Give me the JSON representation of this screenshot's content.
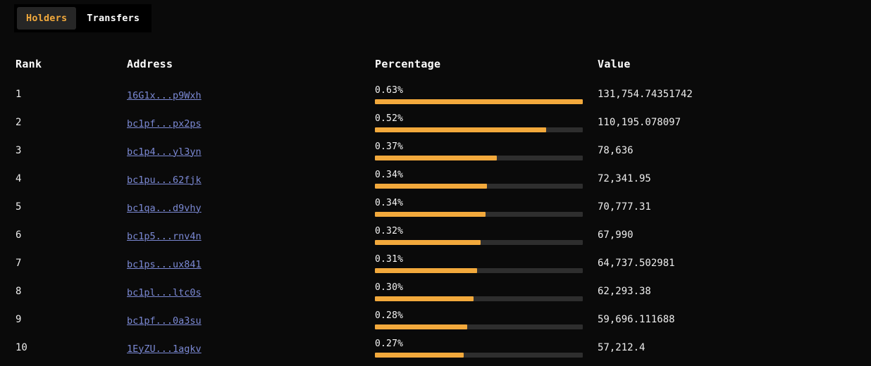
{
  "tabs": [
    {
      "label": "Holders",
      "active": true
    },
    {
      "label": "Transfers",
      "active": false
    }
  ],
  "table": {
    "headers": {
      "rank": "Rank",
      "address": "Address",
      "percentage": "Percentage",
      "value": "Value"
    },
    "rows": [
      {
        "rank": "1",
        "address": "16G1x...p9Wxh",
        "percent": "0.63%",
        "percent_value": 0.63,
        "value": "131,754.74351742"
      },
      {
        "rank": "2",
        "address": "bc1pf...px2ps",
        "percent": "0.52%",
        "percent_value": 0.52,
        "value": "110,195.078097"
      },
      {
        "rank": "3",
        "address": "bc1p4...yl3yn",
        "percent": "0.37%",
        "percent_value": 0.37,
        "value": "78,636"
      },
      {
        "rank": "4",
        "address": "bc1pu...62fjk",
        "percent": "0.34%",
        "percent_value": 0.34,
        "value": "72,341.95"
      },
      {
        "rank": "5",
        "address": "bc1qa...d9vhy",
        "percent": "0.34%",
        "percent_value": 0.335,
        "value": "70,777.31"
      },
      {
        "rank": "6",
        "address": "bc1p5...rnv4n",
        "percent": "0.32%",
        "percent_value": 0.32,
        "value": "67,990"
      },
      {
        "rank": "7",
        "address": "bc1ps...ux841",
        "percent": "0.31%",
        "percent_value": 0.31,
        "value": "64,737.502981"
      },
      {
        "rank": "8",
        "address": "bc1pl...ltc0s",
        "percent": "0.30%",
        "percent_value": 0.3,
        "value": "62,293.38"
      },
      {
        "rank": "9",
        "address": "bc1pf...0a3su",
        "percent": "0.28%",
        "percent_value": 0.28,
        "value": "59,696.111688"
      },
      {
        "rank": "10",
        "address": "1EyZU...1agkv",
        "percent": "0.27%",
        "percent_value": 0.27,
        "value": "57,212.4"
      }
    ],
    "max_percent": 0.63
  },
  "colors": {
    "background": "#0a0a0a",
    "accent": "#f2a93c",
    "link": "#7b89d4",
    "bar_track": "#2e2e2e",
    "active_tab_bg": "#262626"
  }
}
